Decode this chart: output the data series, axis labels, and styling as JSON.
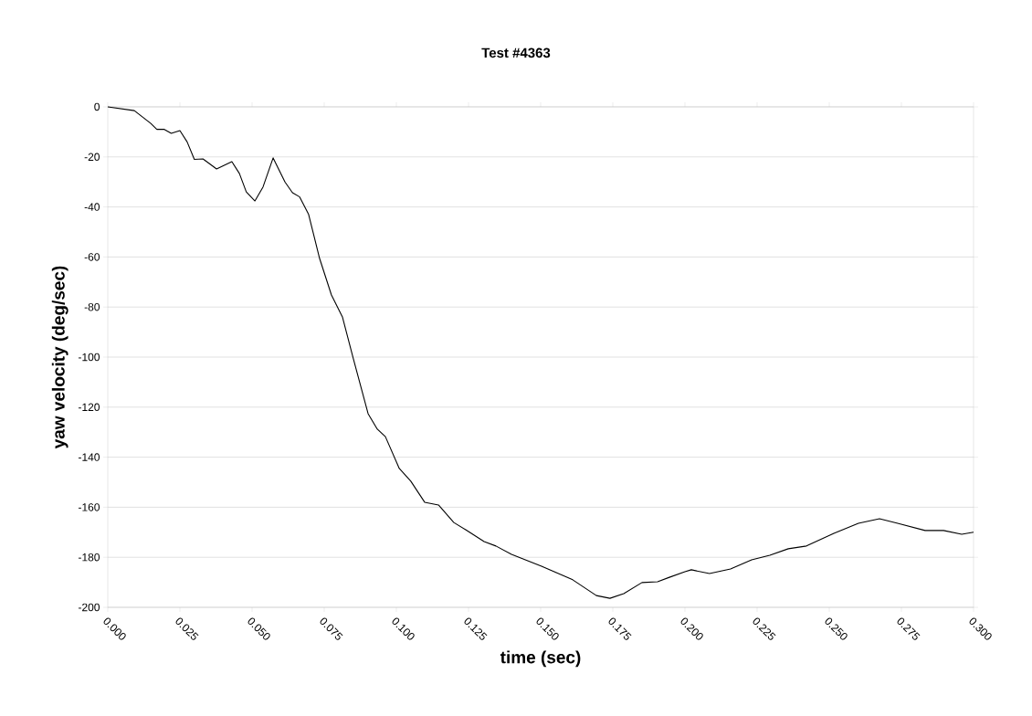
{
  "chart_data": {
    "type": "line",
    "title": "Test #4363",
    "xlabel": "time (sec)",
    "ylabel": "yaw velocity (deg/sec)",
    "x": [
      0,
      0.0092,
      0.0149,
      0.017,
      0.0196,
      0.022,
      0.025,
      0.0275,
      0.03,
      0.033,
      0.0377,
      0.043,
      0.0456,
      0.048,
      0.051,
      0.0538,
      0.0573,
      0.0614,
      0.064,
      0.0665,
      0.0696,
      0.0734,
      0.0775,
      0.0813,
      0.0851,
      0.0902,
      0.0934,
      0.0962,
      0.101,
      0.105,
      0.1098,
      0.1146,
      0.1199,
      0.124,
      0.1304,
      0.1345,
      0.1399,
      0.1503,
      0.1611,
      0.1693,
      0.174,
      0.1788,
      0.1851,
      0.1905,
      0.1946,
      0.2,
      0.2022,
      0.2085,
      0.2158,
      0.2231,
      0.2294,
      0.2358,
      0.2421,
      0.2516,
      0.2601,
      0.2674,
      0.2737,
      0.2832,
      0.2896,
      0.2959,
      0.3
    ],
    "series": [
      {
        "color": "#000000",
        "values": [
          0,
          -1.5,
          -6.6,
          -9,
          -9,
          -10.6,
          -9.5,
          -14,
          -21,
          -20.8,
          -24.8,
          -21.9,
          -26.6,
          -34,
          -37.6,
          -32,
          -20.4,
          -30,
          -34.3,
          -36,
          -43,
          -60.6,
          -75.2,
          -83.9,
          -100.7,
          -122.6,
          -128.8,
          -131.8,
          -144.5,
          -149.6,
          -158,
          -159.1,
          -166.1,
          -169,
          -173.7,
          -175.5,
          -178.8,
          -183.6,
          -189,
          -195.3,
          -196.4,
          -194.5,
          -190.1,
          -189.8,
          -188,
          -185.8,
          -185,
          -186.5,
          -184.7,
          -181,
          -179.2,
          -176.6,
          -175.5,
          -170.4,
          -166.4,
          -164.6,
          -166.4,
          -169.3,
          -169.3,
          -170.8,
          -170
        ]
      }
    ],
    "xlim": [
      0,
      0.3
    ],
    "ylim": [
      -200,
      0
    ],
    "xticks": [
      {
        "value": 0,
        "label": "0.000"
      },
      {
        "value": 0.025,
        "label": "0.025"
      },
      {
        "value": 0.05,
        "label": "0.050"
      },
      {
        "value": 0.075,
        "label": "0.075"
      },
      {
        "value": 0.1,
        "label": "0.100"
      },
      {
        "value": 0.125,
        "label": "0.125"
      },
      {
        "value": 0.15,
        "label": "0.150"
      },
      {
        "value": 0.175,
        "label": "0.175"
      },
      {
        "value": 0.2,
        "label": "0.200"
      },
      {
        "value": 0.225,
        "label": "0.225"
      },
      {
        "value": 0.25,
        "label": "0.250"
      },
      {
        "value": 0.275,
        "label": "0.275"
      },
      {
        "value": 0.3,
        "label": "0.300"
      }
    ],
    "yticks": [
      -200,
      -180,
      -160,
      -140,
      -120,
      -100,
      -80,
      -60,
      -40,
      -20,
      0
    ],
    "grid": "y",
    "marker": "none",
    "line_style": "solid"
  }
}
